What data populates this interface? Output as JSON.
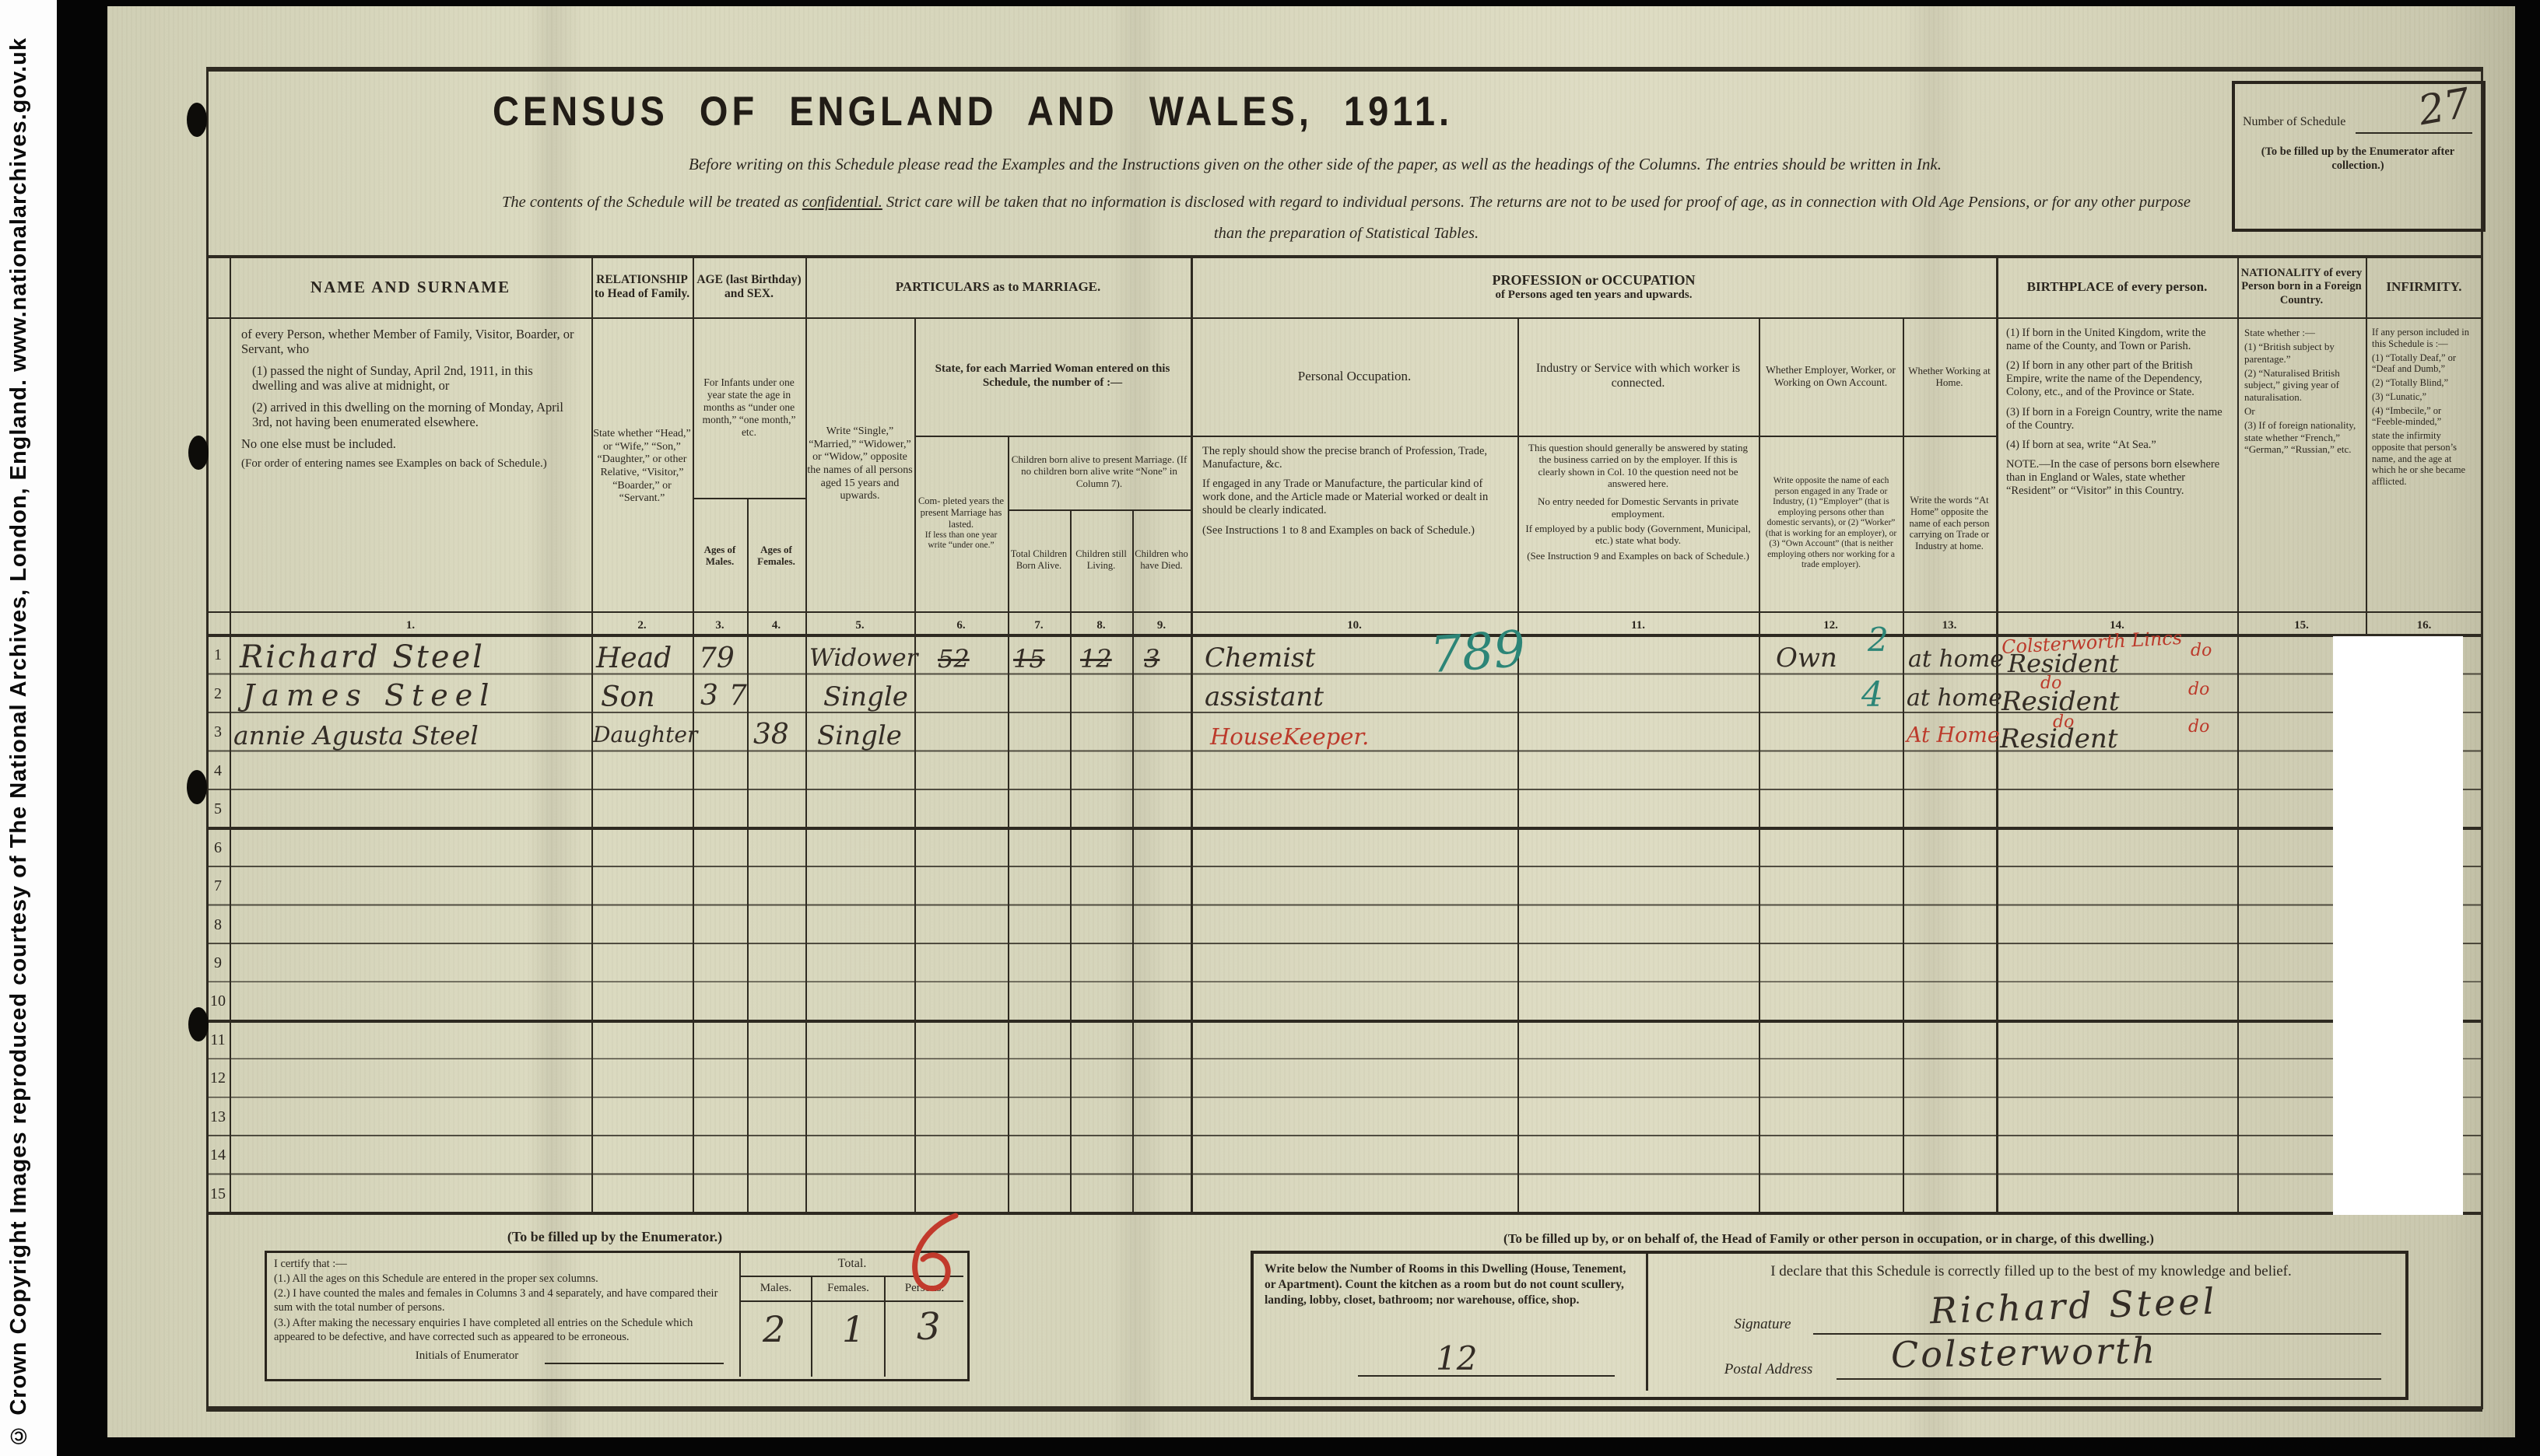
{
  "copyright": "© Crown Copyright Images reproduced courtesy of The National Archives, London, England. www.nationalarchives.gov.uk",
  "header": {
    "title": "CENSUS OF ENGLAND AND WALES, 1911.",
    "instruction": "Before writing on this Schedule please read the Examples and the Instructions given on the other side of the paper, as well as the headings of the Columns.   The entries should be written in Ink.",
    "confidential_lead": "The contents of the Schedule will be treated as ",
    "confidential_word": "confidential.",
    "confidential_rest": "  Strict care will be taken that no information is disclosed with regard to individual persons.  The returns are not to be used for proof of age, as in connection with Old Age Pensions, or for any other purpose",
    "confidential_line2": "than the preparation of Statistical Tables.",
    "schedule_box": {
      "label": "Number of Schedule",
      "number": "27",
      "note": "(To be filled up by the Enumerator after collection.)"
    }
  },
  "table": {
    "row_numbers": [
      "1",
      "2",
      "3",
      "4",
      "5",
      "6",
      "7",
      "8",
      "9",
      "10",
      "11",
      "12",
      "13",
      "14",
      "15"
    ],
    "col_numbers": [
      "1.",
      "2.",
      "3.",
      "4.",
      "5.",
      "6.",
      "7.",
      "8.",
      "9.",
      "10.",
      "11.",
      "12.",
      "13.",
      "14.",
      "15.",
      "16."
    ],
    "name": {
      "title": "NAME AND SURNAME",
      "intro": "of every Person, whether Member of Family, Visitor, Boarder, or Servant, who",
      "item1": "(1) passed the night of Sunday, April 2nd, 1911, in this dwelling and was alive at midnight, or",
      "item2": "(2) arrived in this dwelling on the morning of Monday, April 3rd, not having been enumerated elsewhere.",
      "note": "No one else must be included.",
      "note2": "(For order of entering names see Examples on back of Schedule.)"
    },
    "relationship": {
      "title": "RELATIONSHIP to Head of Family.",
      "body": "State whether “Head,” or “Wife,” “Son,” “Daughter,” or other Relative, “Visitor,” “Boarder,” or “Servant.”"
    },
    "age": {
      "title": "AGE (last Birthday) and SEX.",
      "body": "For Infants under one year state the age in months as “under one month,” “one month,” etc.",
      "males": "Ages of Males.",
      "females": "Ages of Females."
    },
    "marriage": {
      "title": "PARTICULARS as to MARRIAGE.",
      "single": "Write “Single,” “Married,” “Widower,” or “Widow,” opposite the names of all persons aged 15 years and upwards.",
      "married_woman": "State, for each Married Woman entered on this Schedule, the number of :—",
      "completed1": "Com- pleted years the present Marriage has lasted.",
      "completed2": "If less than one year write “under one.”",
      "children_head": "Children born alive to present Marriage. (If no children born alive write “None” in Column 7).",
      "born": "Total Children Born Alive.",
      "living": "Children still Living.",
      "died": "Children who have Died."
    },
    "profession": {
      "title": "PROFESSION or OCCUPATION",
      "subtitle": "of Persons aged ten years and upwards.",
      "personal_title": "Personal Occupation.",
      "personal_body1": "The reply should show the precise branch of Profession, Trade, Manufacture, &c.",
      "personal_body2": "If engaged in any Trade or Manufacture, the particular kind of work done, and the Article made or Material worked or dealt in should be clearly indicated.",
      "personal_body3": "(See Instructions 1 to 8 and Examples on back of Schedule.)",
      "industry_title": "Industry or Service with which worker is connected.",
      "industry_body1": "This question should generally be answered by stating the business carried on by the employer.  If this is clearly shown in Col. 10 the question need not be answered here.",
      "industry_body2": "No entry needed for Domestic Servants in private employment.",
      "industry_body3": "If employed by a public body (Government, Municipal, etc.) state what body.",
      "industry_body4": "(See Instruction 9 and Examples on back of Schedule.)",
      "employer_title": "Whether Employer, Worker, or Working on Own Account.",
      "employer_body": "Write opposite the name of each person engaged in any Trade or Industry, (1) “Employer” (that is employing persons other than domestic servants), or (2) “Worker” (that is working for an employer), or (3) “Own Account” (that is neither employing others nor working for a trade employer).",
      "home_title": "Whether Working at Home.",
      "home_body": "Write the words “At Home” opposite the name of each person carrying on Trade or Industry at home."
    },
    "birthplace": {
      "title": "BIRTHPLACE of every person.",
      "body1": "(1) If born in the United Kingdom, write the name of the County, and Town or Parish.",
      "body2": "(2) If born in any other part of the British Empire, write the name of the Dependency, Colony, etc., and of the Province or State.",
      "body3": "(3) If born in a Foreign Country, write the name of the Country.",
      "body4": "(4) If born at sea, write “At Sea.”",
      "note": "NOTE.—In the case of persons born elsewhere than in England or Wales, state whether “Resident” or “Visitor” in this Country."
    },
    "nationality": {
      "title": "NATIONALITY of every Person born in a Foreign Country.",
      "body1": "State whether :—",
      "body2": "(1) “British subject by parentage.”",
      "body3": "(2) “Naturalised British subject,” giving year of naturalisation.",
      "body4": "Or",
      "body5": "(3) If of foreign nationality, state whether “French,” “German,” “Russian,” etc."
    },
    "infirmity": {
      "title": "INFIRMITY.",
      "body1": "If any person included in this Schedule is :—",
      "body2": "(1) “Totally Deaf,” or “Deaf and Dumb,”",
      "body3": "(2) “Totally Blind,”",
      "body4": "(3) “Lunatic,”",
      "body5": "(4) “Imbecile,” or “Feeble-minded,”",
      "body6": "state the infirmity opposite that person’s name, and the age at which he or she became afflicted."
    }
  },
  "entries": [
    {
      "name": "Richard Steel",
      "relationship": "Head",
      "age_male": "79",
      "marriage": "Widower",
      "years_married": "52",
      "children_born": "15",
      "children_living": "12",
      "children_died": "3",
      "occupation": "Chemist",
      "occupation_green": "789",
      "employer": "Own",
      "employer_green": "2",
      "home": "at home",
      "birthplace_red": "Colsterworth Lincs",
      "birthplace": "Resident",
      "nationality_red": "do"
    },
    {
      "name": "James Steel",
      "relationship": "Son",
      "age_male": "37",
      "marriage": "Single",
      "occupation": "assistant",
      "employer_green": "4",
      "home": "at home",
      "birthplace_red": "do",
      "birthplace": "Resident",
      "nationality_red": "do"
    },
    {
      "name": "annie Agusta Steel",
      "relationship": "Daughter",
      "age_female": "38",
      "marriage": "Single",
      "occupation_red": "HouseKeeper.",
      "home_red": "At Home",
      "birthplace_red": "do",
      "birthplace": "Resident",
      "nationality_red": "do"
    }
  ],
  "enumerator": {
    "heading": "(To be filled up by the Enumerator.)",
    "certify_intro": "I certify that :—",
    "c1": "(1.) All the ages on this Schedule are entered in the proper sex columns.",
    "c2": "(2.) I have counted the males and females in Columns 3 and 4 separately, and have compared their sum with the total number of persons.",
    "c3": "(3.) After making the necessary enquiries I have completed all entries on the Schedule which appeared to be defective, and have corrected such as appeared to be erroneous.",
    "initials_label": "Initials of Enumerator",
    "total_label": "Total.",
    "males_label": "Males.",
    "females_label": "Females.",
    "persons_label": "Persons.",
    "males_value": "2",
    "females_value": "1",
    "persons_value": "3"
  },
  "head_declaration": {
    "heading": "(To be filled up by, or on behalf of, the Head of Family or other person in occupation, or in charge, of this dwelling.)",
    "rooms_body": "Write below the Number of Rooms in this Dwelling (House, Tenement, or Apartment).  Count the kitchen as a room but do not count scullery, landing, lobby, closet, bathroom; nor warehouse, office, shop.",
    "rooms_value": "12",
    "declaration": "I declare that this Schedule is correctly filled up to the best of my knowledge and belief.",
    "signature_label": "Signature",
    "signature_value": "Richard Steel",
    "postal_label": "Postal Address",
    "postal_value": "Colsterworth"
  }
}
